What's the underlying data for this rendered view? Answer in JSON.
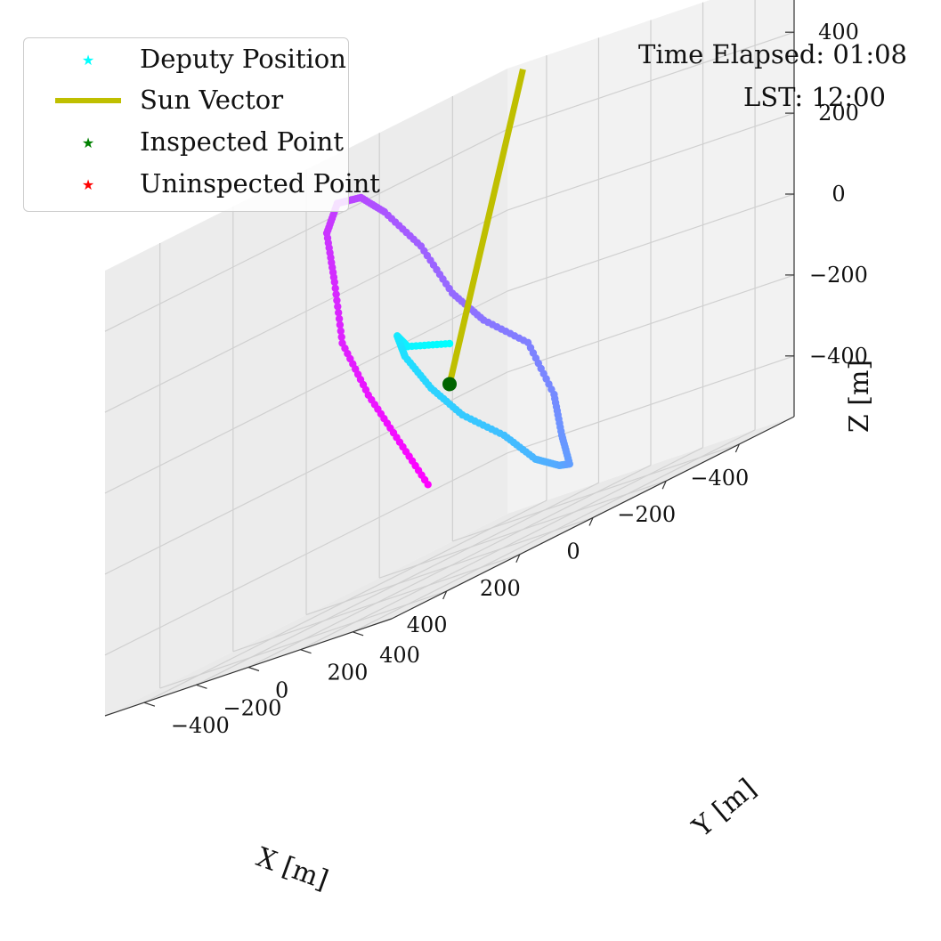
{
  "chart_data": {
    "type": "scatter3d",
    "title": "",
    "xlabel": "X [m]",
    "ylabel": "Y [m]",
    "zlabel": "Z [m]",
    "xlim": [
      -550,
      550
    ],
    "ylim": [
      -550,
      550
    ],
    "zlim": [
      -550,
      550
    ],
    "x_ticks": [
      400,
      200,
      0,
      -200,
      -400
    ],
    "y_ticks": [
      -400,
      -200,
      0,
      200,
      400
    ],
    "z_ticks": [
      400,
      200,
      0,
      -200,
      -400
    ],
    "x_tick_labels": [
      "400",
      "200",
      "0",
      "−200",
      "−400"
    ],
    "y_tick_labels": [
      "−400",
      "−200",
      "0",
      "200",
      "400"
    ],
    "z_tick_labels": [
      "400",
      "200",
      "0",
      "−200",
      "−400"
    ],
    "grid": true,
    "series": [
      {
        "name": "Deputy Position",
        "marker": "star",
        "color_start": "#00ffff",
        "color_end": "#ff00ff",
        "trajectory_color_order": "cyan to magenta along time",
        "x": [
          0,
          150,
          250,
          300,
          300,
          250,
          150,
          50,
          -50,
          -150,
          -200,
          -250,
          -250,
          -200,
          -150,
          -100,
          0,
          100,
          200,
          300,
          350,
          400,
          400,
          350,
          300
        ],
        "y": [
          0,
          50,
          150,
          250,
          350,
          400,
          420,
          400,
          350,
          250,
          150,
          50,
          -50,
          -150,
          -200,
          -250,
          -250,
          -200,
          -150,
          -50,
          50,
          150,
          250,
          300,
          350
        ],
        "z": [
          0,
          50,
          100,
          50,
          -50,
          -150,
          -250,
          -350,
          -400,
          -420,
          -350,
          -250,
          -100,
          0,
          100,
          250,
          380,
          450,
          470,
          420,
          300,
          150,
          0,
          -150,
          -300
        ]
      },
      {
        "name": "Sun Vector",
        "type": "line",
        "color": "#bfbf00",
        "from": [
          0,
          0,
          -100
        ],
        "to": [
          -450,
          -350,
          550
        ]
      },
      {
        "name": "Inspected Point",
        "marker": "star",
        "color": "#006400",
        "points": [
          [
            0,
            0,
            -100
          ]
        ]
      },
      {
        "name": "Uninspected Point",
        "marker": "star",
        "color": "#ff0000",
        "points": []
      }
    ],
    "legend": {
      "placement": "top-left",
      "entries": [
        {
          "label": "Deputy Position",
          "symbol": "star",
          "color": "#00ffff"
        },
        {
          "label": "Sun Vector",
          "symbol": "line",
          "color": "#bfbf00"
        },
        {
          "label": "Inspected Point",
          "symbol": "star",
          "color": "#008000"
        },
        {
          "label": "Uninspected Point",
          "symbol": "star",
          "color": "#ff0000"
        }
      ]
    }
  },
  "info": {
    "time_elapsed": "Time Elapsed: 01:08",
    "lst": "LST: 12:00"
  }
}
